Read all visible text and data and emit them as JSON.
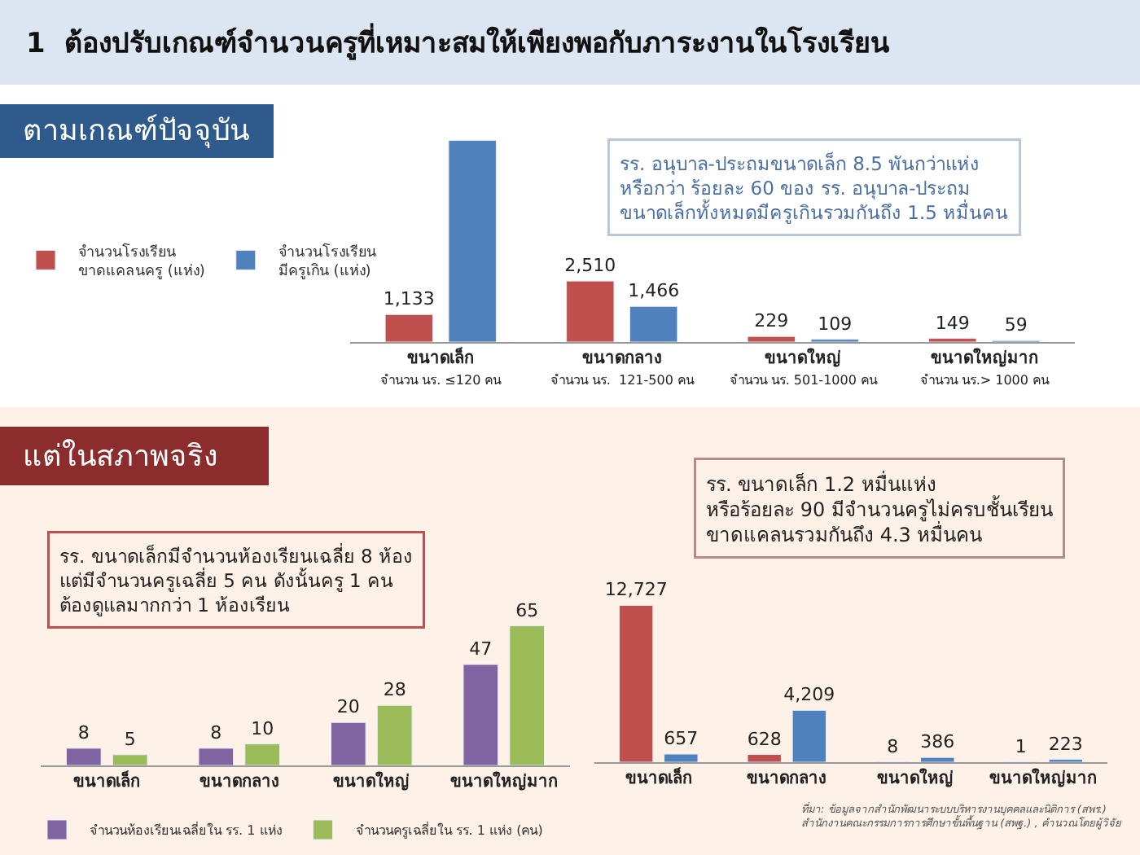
{
  "chart_data": [
    {
      "type": "bar",
      "title": "1  ต้องปรับเกณฑ์จำนวนครูที่เหมาะสมให้เพียงพอกับภาระงานในโรงเรียน",
      "subtitle": "ตามเกณฑ์ปัจจุบัน",
      "categories": [
        "ขนาดเล็ก\nจำนวน นร. ≤120 คน",
        "ขนาดกลาง\nจำนวน นร.  121-500 คน",
        "ขนาดใหญ่\nจำนวน นร. 501-1000 คน",
        "ขนาดใหญ่มาก\nจำนวน นร.> 1000 คน"
      ],
      "series": [
        {
          "name": "จำนวนโรงเรียน\nขาดแคลนครู (แห่ง)",
          "color": "#c0504d",
          "values": [
            1133,
            2510,
            229,
            149
          ],
          "value_labels": [
            "1,133",
            "2,510",
            "229",
            "149"
          ]
        },
        {
          "name": "จำนวนโรงเรียน\nมีครูเกิน (แห่ง)",
          "color": "#4f81bd",
          "values": [
            8300,
            1466,
            109,
            59
          ],
          "value_labels": [
            null,
            "1,466",
            "109",
            "59"
          ]
        }
      ],
      "legend": "left",
      "annotations": [
        "รร. อนุบาล-ประถมขนาดเล็ก 8.5 พันกว่าแห่ง\nหรือกว่า ร้อยละ 60 ของ รร. อนุบาล-ประถม\nขนาดเล็กทั้งหมดมีครูเกินรวมกันถึง 1.5 หมื่นคน"
      ]
    },
    {
      "type": "bar",
      "title": "แต่ในสภาพจริง",
      "categories": [
        "ขนาดเล็ก",
        "ขนาดกลาง",
        "ขนาดใหญ่",
        "ขนาดใหญ่มาก"
      ],
      "series": [
        {
          "name": "จำนวนห้องเรียนเฉลี่ยใน รร. 1 แห่ง",
          "color": "#8064a2",
          "values": [
            8,
            8,
            20,
            47
          ]
        },
        {
          "name": "จำนวนครูเฉลี่ยใน รร. 1 แห่ง (คน)",
          "color": "#9bbb59",
          "values": [
            5,
            10,
            28,
            65
          ]
        }
      ],
      "data_labels": true,
      "legend": "bottom",
      "annotations": [
        "รร. ขนาดเล็กมีจำนวนห้องเรียนเฉลี่ย 8 ห้อง\nแต่มีจำนวนครูเฉลี่ย 5 คน ดังนั้นครู 1 คน\nต้องดูแลมากกว่า 1 ห้องเรียน"
      ]
    },
    {
      "type": "bar",
      "categories": [
        "ขนาดเล็ก",
        "ขนาดกลาง",
        "ขนาดใหญ่",
        "ขนาดใหญ่มาก"
      ],
      "series": [
        {
          "color": "#c0504d",
          "values": [
            12727,
            628,
            8,
            1
          ],
          "value_labels": [
            "12,727",
            "628",
            "8",
            "1"
          ]
        },
        {
          "color": "#4f81bd",
          "values": [
            657,
            4209,
            386,
            223
          ],
          "value_labels": [
            "657",
            "4,209",
            "386",
            "223"
          ]
        }
      ],
      "annotations": [
        "รร. ขนาดเล็ก 1.2 หมื่นแห่ง\nหรือร้อยละ 90 มีจำนวนครูไม่ครบชั้นเรียน\nขาดแคลนรวมกันถึง 4.3 หมื่นคน",
        "ที่มา: ข้อมูลจากสำนักพัฒนาระบบบริหารงานบุคคลและนิติการ (สพร.)\nสำนักงานคณะกรรมการการศึกษาขั้นพื้นฐาน (สพฐ.) , คำนวณโดยผู้วิจัย"
      ]
    }
  ]
}
